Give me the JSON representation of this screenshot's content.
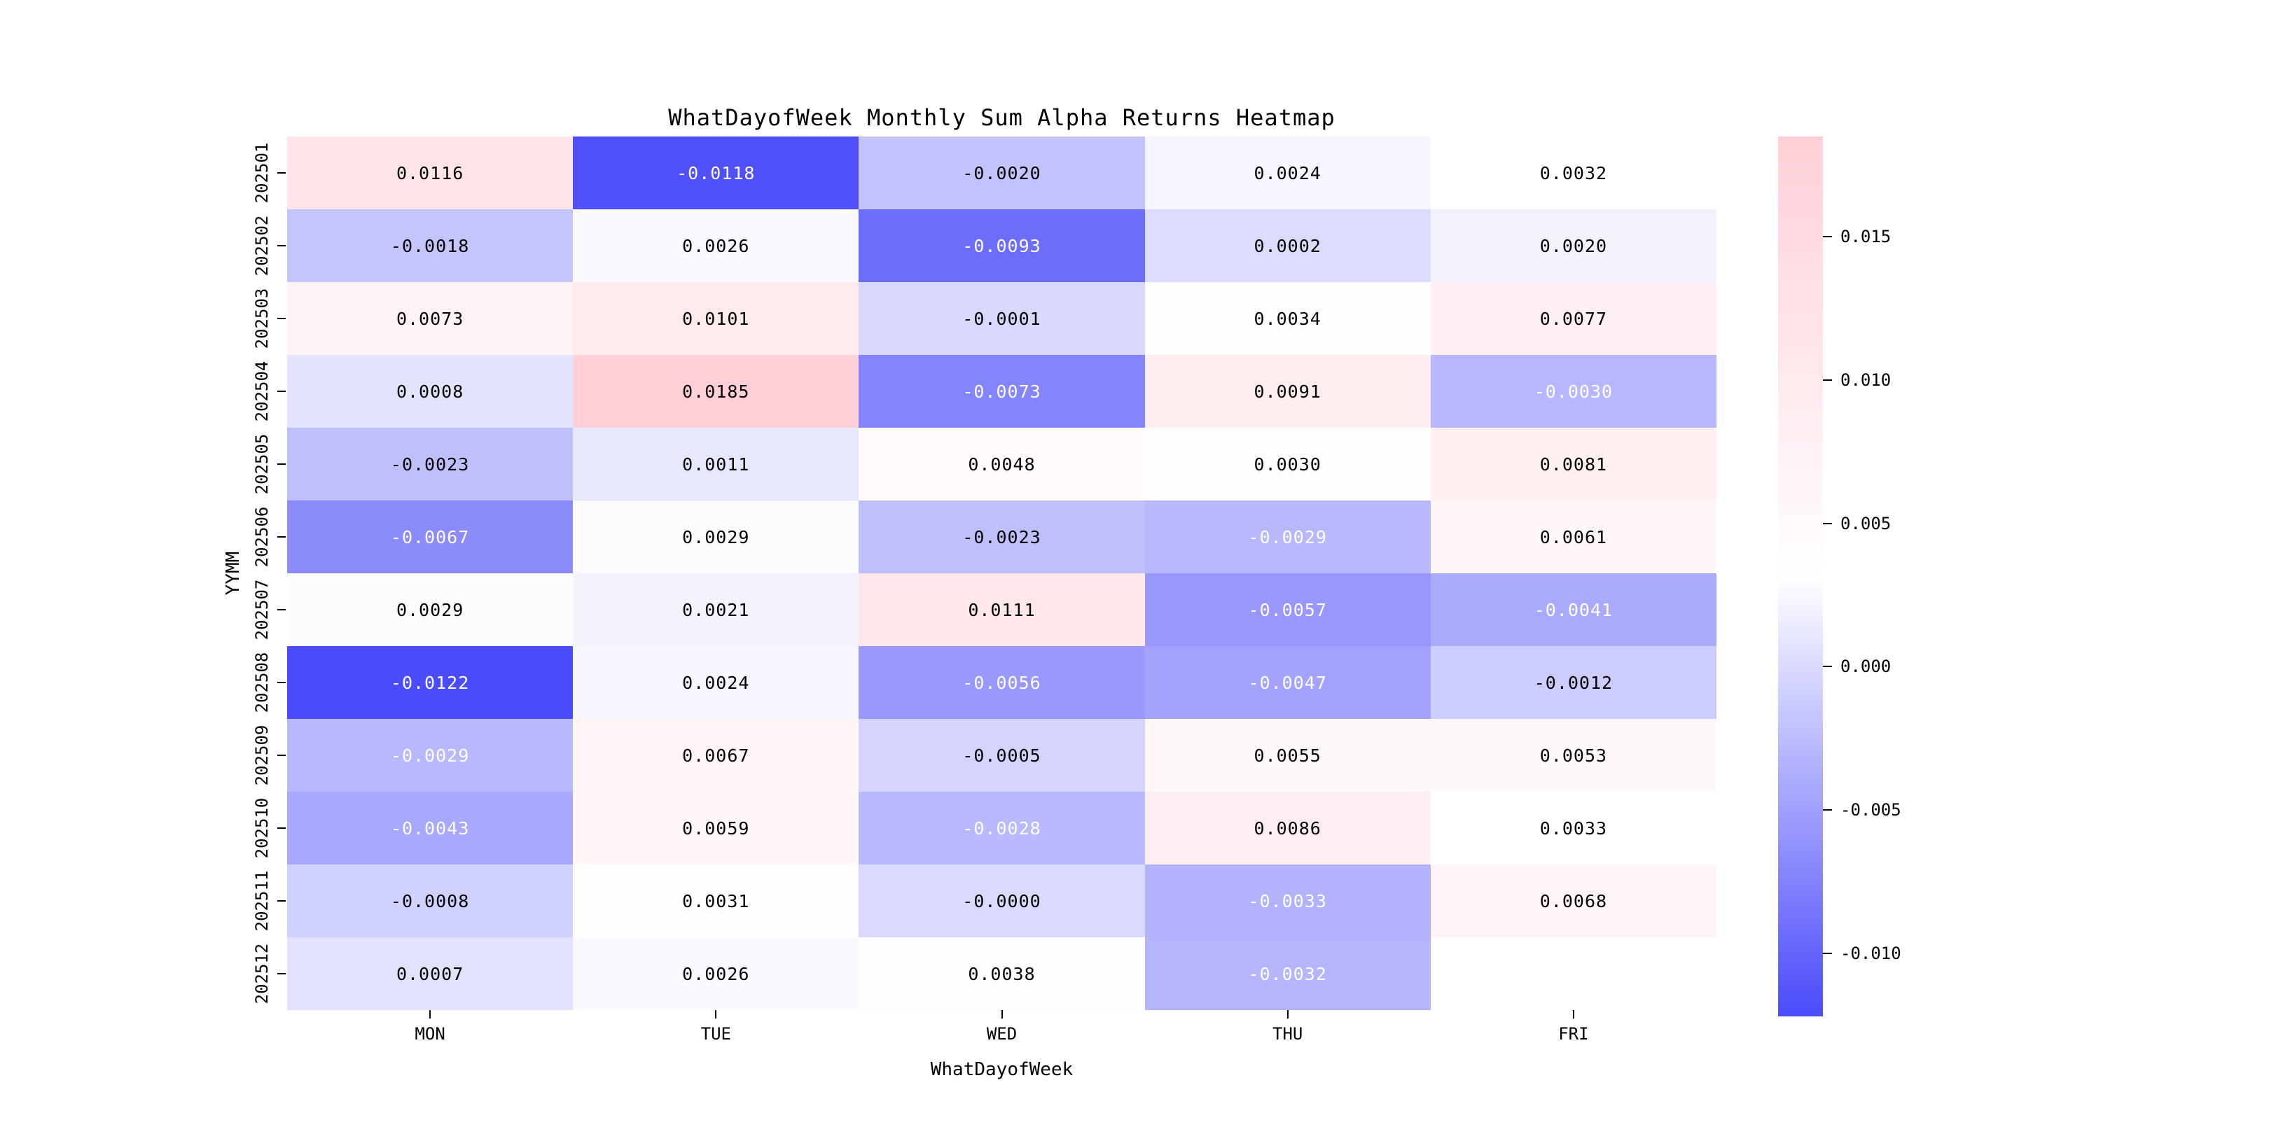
{
  "chart_data": {
    "type": "heatmap",
    "title": "WhatDayofWeek Monthly Sum Alpha Returns Heatmap",
    "xlabel": "WhatDayofWeek",
    "ylabel": "YYMM",
    "x_labels": [
      "MON",
      "TUE",
      "WED",
      "THU",
      "FRI"
    ],
    "y_labels": [
      "202501",
      "202502",
      "202503",
      "202504",
      "202505",
      "202506",
      "202507",
      "202508",
      "202509",
      "202510",
      "202511",
      "202512"
    ],
    "values": [
      [
        "0.0116",
        "-0.0118",
        "-0.0020",
        "0.0024",
        "0.0032"
      ],
      [
        "-0.0018",
        "0.0026",
        "-0.0093",
        "0.0002",
        "0.0020"
      ],
      [
        "0.0073",
        "0.0101",
        "-0.0001",
        "0.0034",
        "0.0077"
      ],
      [
        "0.0008",
        "0.0185",
        "-0.0073",
        "0.0091",
        "-0.0030"
      ],
      [
        "-0.0023",
        "0.0011",
        "0.0048",
        "0.0030",
        "0.0081"
      ],
      [
        "-0.0067",
        "0.0029",
        "-0.0023",
        "-0.0029",
        "0.0061"
      ],
      [
        "0.0029",
        "0.0021",
        "0.0111",
        "-0.0057",
        "-0.0041"
      ],
      [
        "-0.0122",
        "0.0024",
        "-0.0056",
        "-0.0047",
        "-0.0012"
      ],
      [
        "-0.0029",
        "0.0067",
        "-0.0005",
        "0.0055",
        "0.0053"
      ],
      [
        "-0.0043",
        "0.0059",
        "-0.0028",
        "0.0086",
        "0.0033"
      ],
      [
        "-0.0008",
        "0.0031",
        "-0.0000",
        "-0.0033",
        "0.0068"
      ],
      [
        "0.0007",
        "0.0026",
        "0.0038",
        "-0.0032",
        null
      ]
    ],
    "vmin": -0.0122,
    "vmax": 0.0185,
    "colorbar_ticks": [
      "0.015",
      "0.010",
      "0.005",
      "0.000",
      "-0.005",
      "-0.010"
    ],
    "colorbar_position": "right",
    "grid": false,
    "colors": {
      "negative_end": "#4b4bfb",
      "mid": "#ffffff",
      "positive_end": "#ffd0d8",
      "annot_dark": "#000000",
      "annot_light": "#ffffff",
      "background": "#ffffff"
    }
  }
}
